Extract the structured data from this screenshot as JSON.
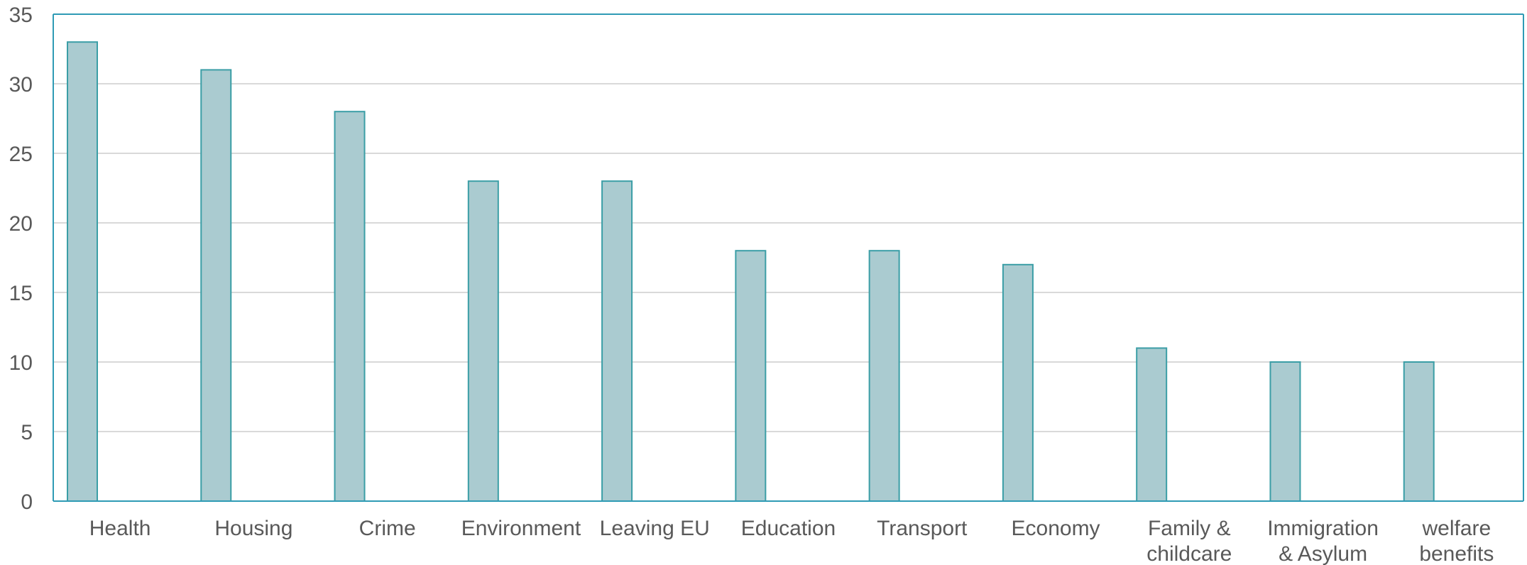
{
  "chart_data": {
    "type": "bar",
    "categories": [
      [
        "Health"
      ],
      [
        "Housing"
      ],
      [
        "Crime"
      ],
      [
        "Environment"
      ],
      [
        "Leaving EU"
      ],
      [
        "Education"
      ],
      [
        "Transport"
      ],
      [
        "Economy"
      ],
      [
        "Family &",
        "childcare"
      ],
      [
        "Immigration",
        "& Asylum"
      ],
      [
        "welfare",
        "benefits"
      ]
    ],
    "values": [
      33,
      31,
      28,
      23,
      23,
      18,
      18,
      17,
      11,
      10,
      10
    ],
    "ylim": [
      0,
      35
    ],
    "yticks": [
      0,
      5,
      10,
      15,
      20,
      25,
      30,
      35
    ],
    "title": "",
    "xlabel": "",
    "ylabel": "",
    "grid": true,
    "legend": "none",
    "colors": {
      "bar_fill": "#aacbd0",
      "bar_stroke": "#3b9ea6",
      "gridline": "#d9d9d9",
      "plot_border": "#2f9bb5",
      "axis_text": "#595959"
    }
  }
}
